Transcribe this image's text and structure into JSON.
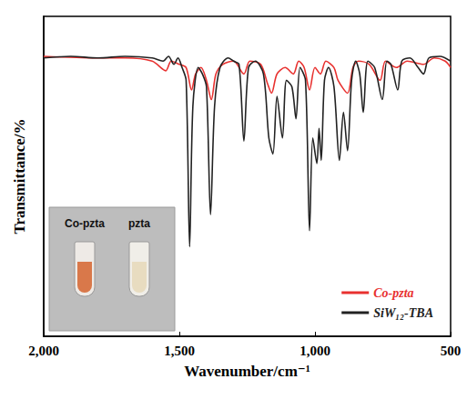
{
  "chart_data": {
    "type": "line",
    "x_label": "Wavenumber/cm⁻¹",
    "y_label": "Transmittance/%",
    "xlim": [
      500,
      2000
    ],
    "xticks": [
      500,
      1000,
      1500,
      2000
    ],
    "ylim": [
      0,
      100
    ],
    "tick_labels": "x",
    "grid": false,
    "legend": "lower right",
    "annotations": [
      "Co-pzta",
      "pzta"
    ],
    "series": [
      {
        "name": "Co-pzta",
        "color": "#e8312f",
        "x": [
          2000,
          1800,
          1700,
          1600,
          1550,
          1530,
          1500,
          1475,
          1455,
          1440,
          1420,
          1400,
          1382,
          1365,
          1340,
          1300,
          1262,
          1240,
          1200,
          1175,
          1160,
          1140,
          1110,
          1080,
          1060,
          1040,
          1020,
          1000,
          980,
          960,
          930,
          915,
          880,
          860,
          840,
          800,
          760,
          740,
          700,
          660,
          600,
          560,
          520,
          500
        ],
        "values": [
          87.5,
          87,
          87,
          86,
          83,
          86,
          85,
          84,
          77,
          82,
          84,
          80,
          74,
          82,
          85,
          86,
          82,
          86,
          85,
          79,
          76,
          82,
          84,
          82,
          86,
          84,
          77,
          84,
          82,
          86,
          84,
          80,
          76,
          84,
          86,
          85,
          80,
          86,
          84,
          86,
          85,
          87,
          86,
          84
        ]
      },
      {
        "name": "SiW₁₂-TBA",
        "color": "#222222",
        "x": [
          2000,
          1900,
          1800,
          1700,
          1600,
          1560,
          1540,
          1520,
          1505,
          1490,
          1475,
          1462,
          1450,
          1430,
          1415,
          1400,
          1385,
          1370,
          1350,
          1320,
          1300,
          1280,
          1262,
          1245,
          1220,
          1190,
          1170,
          1155,
          1140,
          1120,
          1105,
          1085,
          1070,
          1055,
          1035,
          1020,
          1008,
          993,
          985,
          977,
          965,
          950,
          930,
          910,
          895,
          880,
          865,
          850,
          835,
          822,
          805,
          780,
          752,
          735,
          720,
          695,
          680,
          650,
          620,
          600,
          580,
          540,
          500
        ],
        "values": [
          87,
          87.5,
          87,
          87.5,
          87,
          86,
          87.5,
          85,
          87,
          84,
          80,
          28,
          72,
          84,
          82,
          78,
          38,
          72,
          84,
          87,
          86,
          85,
          61,
          84,
          86,
          82,
          62,
          57,
          75,
          62,
          80,
          78,
          68,
          84,
          80,
          33,
          62,
          54,
          65,
          55,
          80,
          84,
          78,
          55,
          70,
          58,
          80,
          86,
          82,
          70,
          86,
          84,
          74,
          86,
          85,
          77,
          86,
          87,
          84,
          82,
          87,
          87.5,
          86
        ]
      }
    ]
  }
}
